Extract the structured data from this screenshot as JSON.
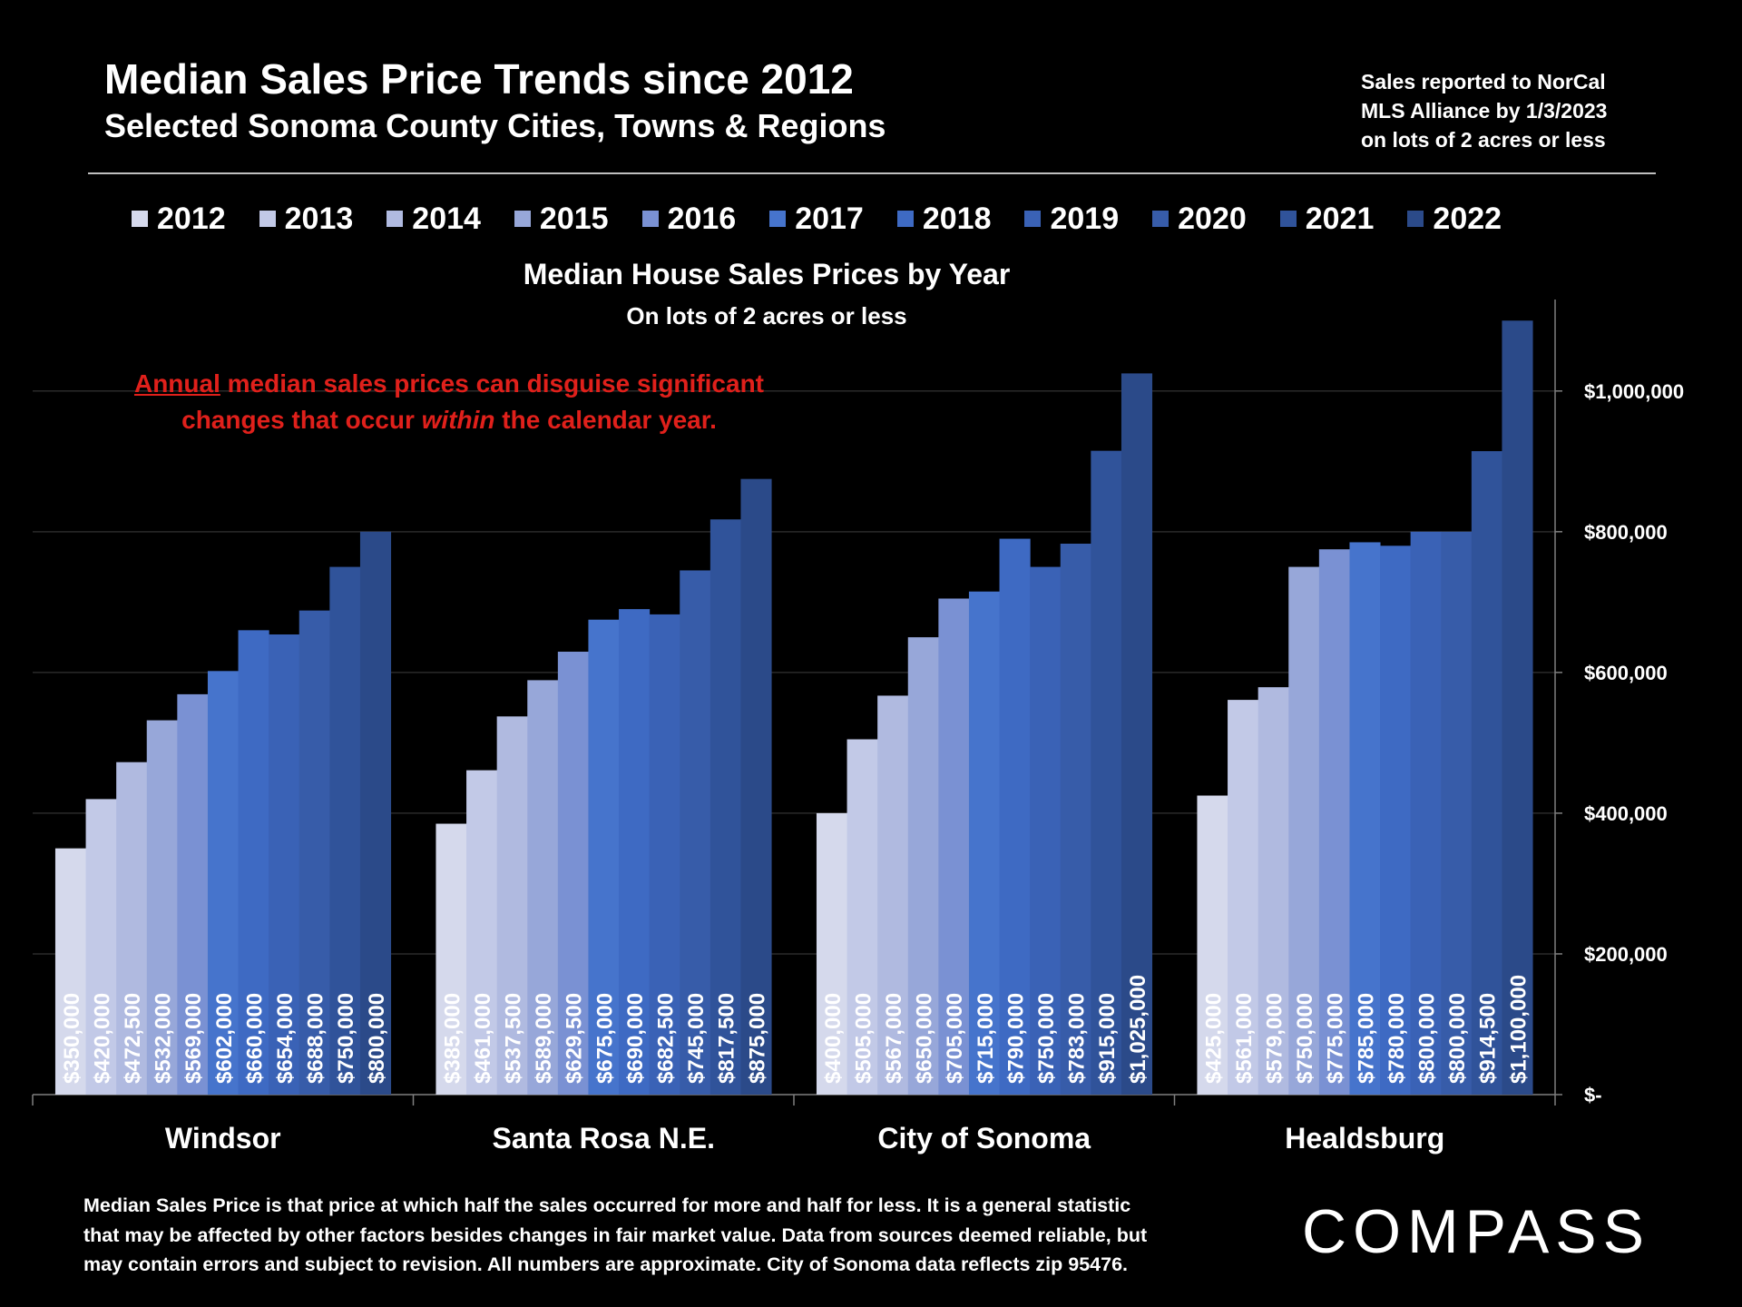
{
  "header": {
    "title": "Median Sales Price Trends since 2012",
    "subtitle": "Selected Sonoma County Cities, Towns & Regions",
    "source_lines": [
      "Sales reported to NorCal",
      "MLS Alliance by 1/3/2023",
      "on lots of 2 acres or less"
    ]
  },
  "annotation": {
    "underlined": "Annual",
    "part1": " median sales prices can disguise significant",
    "part2": "changes that occur ",
    "italic": "within",
    "part3": " the calendar year."
  },
  "footnote_lines": [
    "Median Sales Price is that price at which half the sales occurred for more and half for less. It is a general statistic",
    "that may be affected by other factors besides changes in fair market value. Data from sources deemed reliable, but",
    "may contain errors and subject to revision.  All numbers are approximate. City of Sonoma data reflects zip 95476."
  ],
  "logo": "COMPASS",
  "chart_data": {
    "type": "bar",
    "title": "Median House Sales Prices by Year",
    "subtitle": "On lots of 2 acres or less",
    "categories": [
      "Windsor",
      "Santa Rosa N.E.",
      "City of Sonoma",
      "Healdsburg"
    ],
    "ylim": [
      0,
      1130000
    ],
    "yticks": [
      0,
      200000,
      400000,
      600000,
      800000,
      1000000
    ],
    "ytick_labels": [
      "$-",
      "$200,000",
      "$400,000",
      "$600,000",
      "$800,000",
      "$1,000,000"
    ],
    "y_axis_position": "right",
    "legend_position": "top",
    "series": [
      {
        "name": "2012",
        "color": "#d5d9ec",
        "values": [
          350000,
          385000,
          400000,
          425000
        ],
        "labels": [
          "$350,000",
          "$385,000",
          "$400,000",
          "$425,000"
        ]
      },
      {
        "name": "2013",
        "color": "#c2c9e7",
        "values": [
          420000,
          461000,
          505000,
          561000
        ],
        "labels": [
          "$420,000",
          "$461,000",
          "$505,000",
          "$561,000"
        ]
      },
      {
        "name": "2014",
        "color": "#b0bae0",
        "values": [
          472500,
          537500,
          567000,
          579000
        ],
        "labels": [
          "$472,500",
          "$537,500",
          "$567,000",
          "$579,000"
        ]
      },
      {
        "name": "2015",
        "color": "#97a7d9",
        "values": [
          532000,
          589000,
          650000,
          750000
        ],
        "labels": [
          "$532,000",
          "$589,000",
          "$650,000",
          "$750,000"
        ]
      },
      {
        "name": "2016",
        "color": "#7a91d3",
        "values": [
          569000,
          629500,
          705000,
          775000
        ],
        "labels": [
          "$569,000",
          "$629,500",
          "$705,000",
          "$775,000"
        ]
      },
      {
        "name": "2017",
        "color": "#4674cc",
        "values": [
          602000,
          675000,
          715000,
          785000
        ],
        "labels": [
          "$602,000",
          "$675,000",
          "$715,000",
          "$785,000"
        ]
      },
      {
        "name": "2018",
        "color": "#3e6ac3",
        "values": [
          660000,
          690000,
          790000,
          780000
        ],
        "labels": [
          "$660,000",
          "$690,000",
          "$790,000",
          "$780,000"
        ]
      },
      {
        "name": "2019",
        "color": "#3a62b6",
        "values": [
          654000,
          682500,
          750000,
          800000
        ],
        "labels": [
          "$654,000",
          "$682,500",
          "$750,000",
          "$800,000"
        ]
      },
      {
        "name": "2020",
        "color": "#375ca9",
        "values": [
          688000,
          745000,
          783000,
          800000
        ],
        "labels": [
          "$688,000",
          "$745,000",
          "$783,000",
          "$800,000"
        ]
      },
      {
        "name": "2021",
        "color": "#30539a",
        "values": [
          750000,
          817500,
          915000,
          914500
        ],
        "labels": [
          "$750,000",
          "$817,500",
          "$915,000",
          "$914,500"
        ]
      },
      {
        "name": "2022",
        "color": "#2b4a89",
        "values": [
          800000,
          875000,
          1025000,
          1100000
        ],
        "labels": [
          "$800,000",
          "$875,000",
          "$1,025,000",
          "$1,100,000"
        ]
      }
    ]
  }
}
